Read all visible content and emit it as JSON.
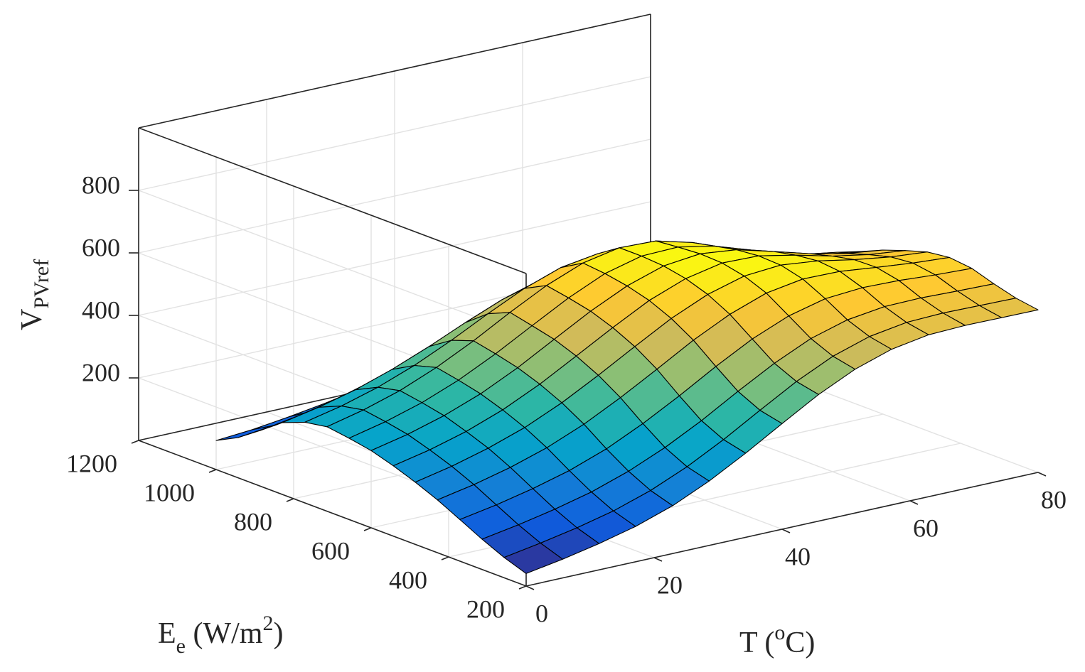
{
  "chart_data": {
    "type": "surface",
    "title": "",
    "xlabel": "E_e (W/m^2)",
    "xlabel_parts": {
      "base": "E",
      "sub": "e",
      "unit_open": " (W/m",
      "sup": "2",
      "unit_close": ")"
    },
    "ylabel": "T (oC)",
    "ylabel_parts": {
      "open": "T (",
      "sup": "o",
      "close": "C)"
    },
    "zlabel": "V_PVref",
    "zlabel_parts": {
      "base": "V",
      "sub": "PVref"
    },
    "x_ticks": [
      "200",
      "400",
      "600",
      "800",
      "1000",
      "1200"
    ],
    "y_ticks": [
      "0",
      "20",
      "40",
      "60",
      "80"
    ],
    "z_ticks": [
      "200",
      "400",
      "600",
      "800"
    ],
    "xlim": [
      200,
      1200
    ],
    "ylim": [
      0,
      80
    ],
    "zlim": [
      0,
      1000
    ],
    "grid": true,
    "colormap": "parula",
    "colormap_stops": [
      "#352a87",
      "#0f5cdd",
      "#1481d6",
      "#06a4ca",
      "#2eb7a4",
      "#87bf77",
      "#d1bb59",
      "#fec832",
      "#f9fb0e"
    ],
    "x_values": [
      200,
      257,
      314,
      371,
      429,
      486,
      543,
      600,
      657,
      714,
      771,
      829,
      886,
      943,
      1000
    ],
    "y_values": [
      0,
      5.7,
      11.4,
      17.1,
      22.9,
      28.6,
      34.3,
      40,
      45.7,
      51.4,
      57.1,
      62.9,
      68.6,
      74.3,
      80
    ],
    "z_values": [
      [
        40,
        65,
        97,
        133,
        169,
        199,
        225,
        247,
        260,
        270,
        258,
        230,
        178,
        129,
        93
      ],
      [
        60,
        85,
        117,
        154,
        192,
        224,
        250,
        273,
        287,
        298,
        284,
        253,
        197,
        142,
        102
      ],
      [
        84,
        108,
        141,
        180,
        221,
        256,
        283,
        307,
        322,
        334,
        318,
        283,
        222,
        161,
        117
      ],
      [
        113,
        136,
        170,
        212,
        258,
        296,
        326,
        351,
        368,
        382,
        362,
        322,
        255,
        185,
        135
      ],
      [
        153,
        175,
        210,
        255,
        307,
        349,
        382,
        408,
        426,
        441,
        416,
        369,
        294,
        215,
        158
      ],
      [
        206,
        225,
        260,
        310,
        366,
        411,
        446,
        473,
        490,
        506,
        475,
        420,
        338,
        249,
        185
      ],
      [
        269,
        286,
        320,
        373,
        431,
        477,
        511,
        537,
        553,
        566,
        530,
        467,
        379,
        282,
        212
      ],
      [
        338,
        354,
        388,
        441,
        498,
        541,
        572,
        592,
        605,
        612,
        571,
        502,
        408,
        306,
        233
      ],
      [
        405,
        420,
        452,
        503,
        555,
        592,
        616,
        630,
        635,
        635,
        589,
        516,
        421,
        317,
        244
      ],
      [
        460,
        475,
        505,
        551,
        597,
        625,
        640,
        643,
        638,
        631,
        582,
        509,
        417,
        316,
        245
      ],
      [
        498,
        512,
        539,
        580,
        616,
        634,
        637,
        630,
        615,
        600,
        551,
        482,
        397,
        302,
        236
      ],
      [
        518,
        531,
        555,
        589,
        614,
        621,
        613,
        598,
        576,
        555,
        506,
        443,
        367,
        280,
        220
      ],
      [
        522,
        535,
        557,
        586,
        601,
        599,
        584,
        565,
        538,
        513,
        465,
        408,
        339,
        259,
        205
      ],
      [
        521,
        533,
        553,
        578,
        589,
        582,
        563,
        540,
        511,
        484,
        437,
        384,
        319,
        244,
        194
      ],
      [
        520,
        531,
        550,
        573,
        581,
        572,
        550,
        525,
        494,
        465,
        419,
        369,
        307,
        235,
        187
      ]
    ]
  }
}
